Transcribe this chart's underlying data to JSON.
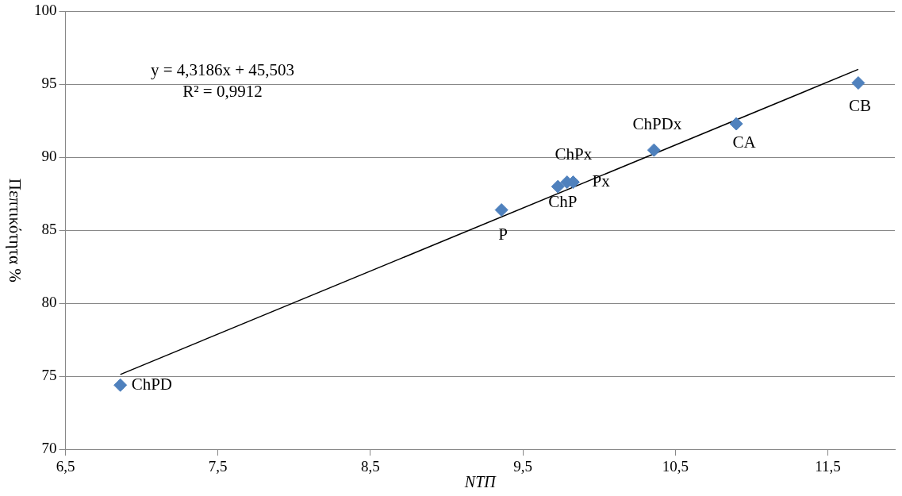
{
  "chart_data": {
    "type": "scatter",
    "xlabel": "NTΠ",
    "ylabel": "Πεπτικότητα %",
    "xlim": [
      6.5,
      11.94
    ],
    "xticks": [
      {
        "value": 6.5,
        "label": "6,5"
      },
      {
        "value": 7.5,
        "label": "7,5"
      },
      {
        "value": 8.5,
        "label": "8,5"
      },
      {
        "value": 9.5,
        "label": "9,5"
      },
      {
        "value": 10.5,
        "label": "10,5"
      },
      {
        "value": 11.5,
        "label": "11,5"
      }
    ],
    "ylim": [
      70,
      100
    ],
    "yticks": [
      70,
      75,
      80,
      85,
      90,
      95,
      100
    ],
    "grid": "y",
    "legend": false,
    "marker": "diamond",
    "annotations": [
      "y = 4,3186x + 45,503",
      "R² = 0,9912"
    ],
    "series": [
      {
        "type": "scatter",
        "color": "#4f81bd",
        "x": [
          6.86,
          9.36,
          9.73,
          9.79,
          9.83,
          10.36,
          10.9,
          11.7
        ],
        "values": [
          74.4,
          86.4,
          88.0,
          88.3,
          88.3,
          90.5,
          92.3,
          95.1
        ],
        "value_labels": [
          "ChPD",
          "P",
          "ChP",
          "ChPx",
          "Px",
          "ChPDx",
          "CA",
          "CB"
        ]
      },
      {
        "type": "line",
        "color": "#000000",
        "x": [
          6.86,
          11.7
        ],
        "values": [
          75.13,
          96.03
        ],
        "marker": "none"
      }
    ]
  }
}
